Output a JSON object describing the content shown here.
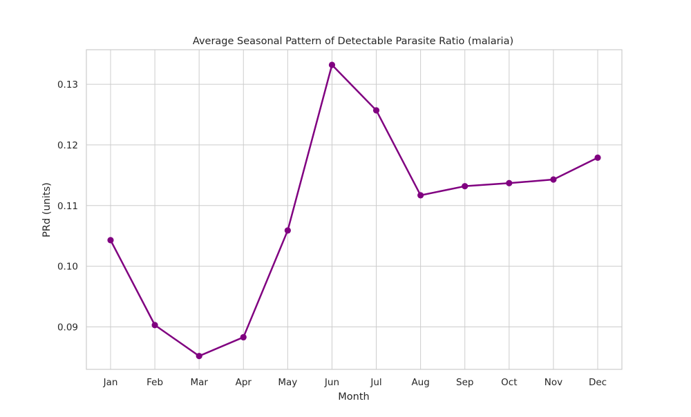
{
  "chart_data": {
    "type": "line",
    "title": "Average Seasonal Pattern of Detectable Parasite Ratio (malaria)",
    "xlabel": "Month",
    "ylabel": "PRd (units)",
    "categories": [
      "Jan",
      "Feb",
      "Mar",
      "Apr",
      "May",
      "Jun",
      "Jul",
      "Aug",
      "Sep",
      "Oct",
      "Nov",
      "Dec"
    ],
    "series": [
      {
        "values": [
          0.1043,
          0.0903,
          0.0852,
          0.0883,
          0.1059,
          0.1332,
          0.1257,
          0.1117,
          0.1132,
          0.1137,
          0.1143,
          0.1179
        ],
        "color": "#800080",
        "marker": "circle"
      }
    ],
    "ylim": [
      0.083,
      0.1357
    ],
    "yticks": [
      0.09,
      0.1,
      0.11,
      0.12,
      0.13
    ],
    "ytick_labels": [
      "0.09",
      "0.10",
      "0.11",
      "0.12",
      "0.13"
    ],
    "grid": true,
    "legend": false
  }
}
